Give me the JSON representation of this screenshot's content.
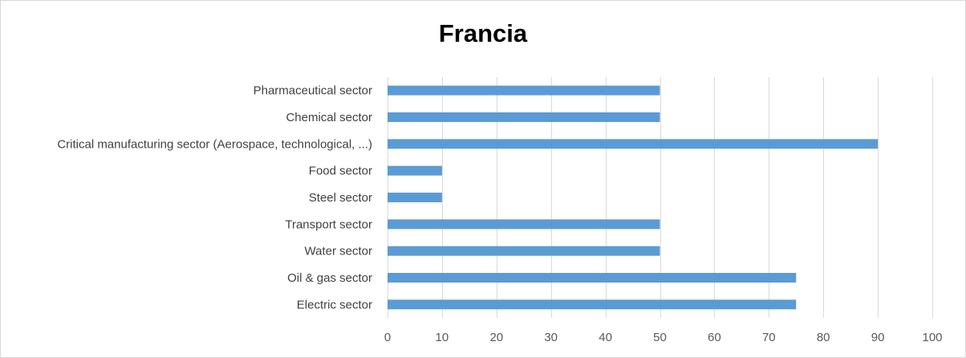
{
  "chart_data": {
    "type": "bar",
    "orientation": "horizontal",
    "title": "Francia",
    "categories": [
      "Pharmaceutical sector",
      "Chemical sector",
      "Critical manufacturing sector (Aerospace, technological, ...)",
      "Food sector",
      "Steel sector",
      "Transport sector",
      "Water sector",
      "Oil & gas sector",
      "Electric sector"
    ],
    "values": [
      50,
      50,
      90,
      10,
      10,
      50,
      50,
      75,
      75
    ],
    "xlim": [
      0,
      100
    ],
    "xticks": [
      0,
      10,
      20,
      30,
      40,
      50,
      60,
      70,
      80,
      90,
      100
    ],
    "grid": "vertical",
    "legend": "none",
    "bar_color": "#5b9bd5"
  }
}
